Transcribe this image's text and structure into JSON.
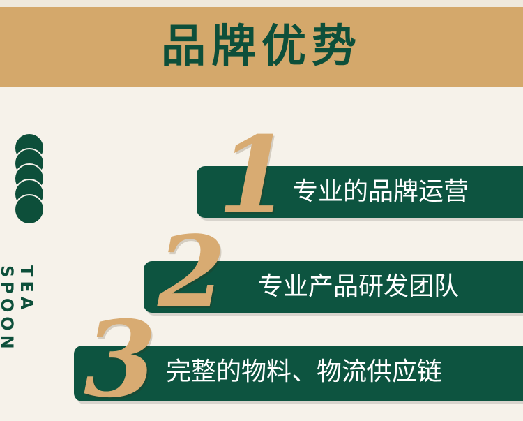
{
  "header": {
    "title": "品牌优势"
  },
  "side_text": "TEA SPOON",
  "items": [
    {
      "number": "1",
      "label": "专业的品牌运营"
    },
    {
      "number": "2",
      "label": "专业产品研发团队"
    },
    {
      "number": "3",
      "label": "完整的物料、物流供应链"
    }
  ],
  "colors": {
    "brand_green": "#0d4f3a",
    "gold": "#d4a86b",
    "background": "#f6f2ea"
  }
}
